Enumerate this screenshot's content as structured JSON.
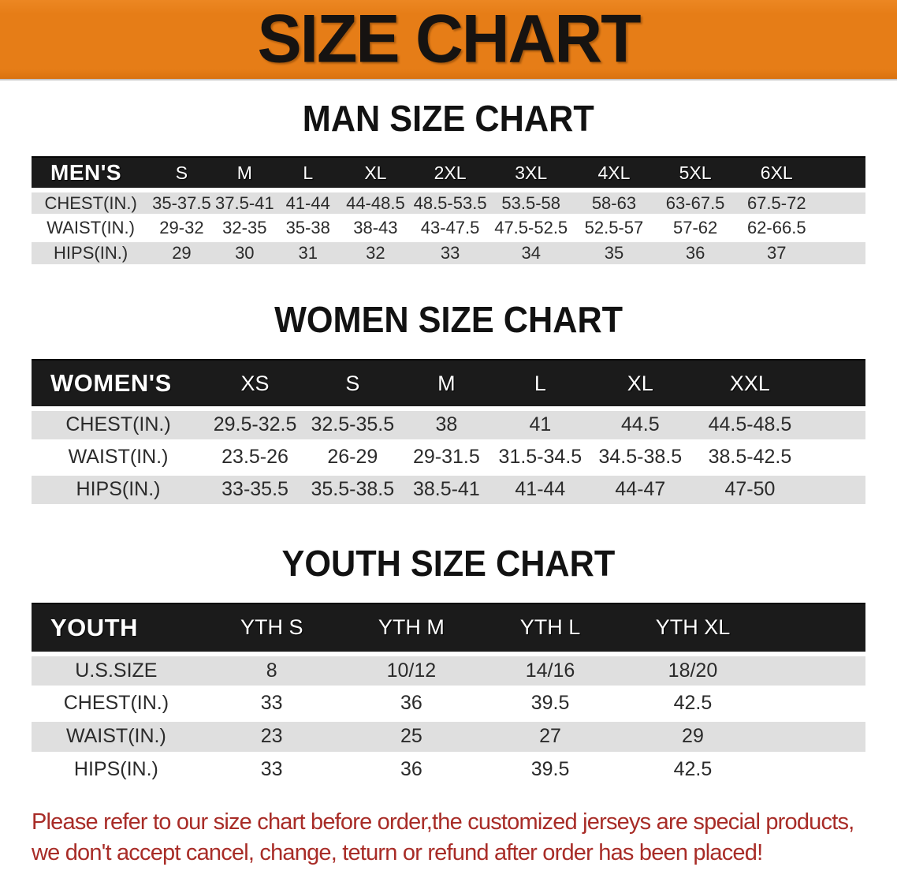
{
  "banner": {
    "title": "SIZE CHART"
  },
  "sections": [
    {
      "heading": "MAN SIZE CHART",
      "table": {
        "label": "MEN'S",
        "columns": [
          "S",
          "M",
          "L",
          "XL",
          "2XL",
          "3XL",
          "4XL",
          "5XL",
          "6XL"
        ],
        "rows": [
          {
            "label": "CHEST(IN.)",
            "values": [
              "35-37.5",
              "37.5-41",
              "41-44",
              "44-48.5",
              "48.5-53.5",
              "53.5-58",
              "58-63",
              "63-67.5",
              "67.5-72"
            ]
          },
          {
            "label": "WAIST(IN.)",
            "values": [
              "29-32",
              "32-35",
              "35-38",
              "38-43",
              "43-47.5",
              "47.5-52.5",
              "52.5-57",
              "57-62",
              "62-66.5"
            ]
          },
          {
            "label": "HIPS(IN.)",
            "values": [
              "29",
              "30",
              "31",
              "32",
              "33",
              "34",
              "35",
              "36",
              "37"
            ]
          }
        ]
      }
    },
    {
      "heading": "WOMEN SIZE CHART",
      "table": {
        "label": "WOMEN'S",
        "columns": [
          "XS",
          "S",
          "M",
          "L",
          "XL",
          "XXL"
        ],
        "rows": [
          {
            "label": "CHEST(IN.)",
            "values": [
              "29.5-32.5",
              "32.5-35.5",
              "38",
              "41",
              "44.5",
              "44.5-48.5"
            ]
          },
          {
            "label": "WAIST(IN.)",
            "values": [
              "23.5-26",
              "26-29",
              "29-31.5",
              "31.5-34.5",
              "34.5-38.5",
              "38.5-42.5"
            ]
          },
          {
            "label": "HIPS(IN.)",
            "values": [
              "33-35.5",
              "35.5-38.5",
              "38.5-41",
              "41-44",
              "44-47",
              "47-50"
            ]
          }
        ]
      }
    },
    {
      "heading": "YOUTH SIZE CHART",
      "table": {
        "label": "YOUTH",
        "columns": [
          "YTH S",
          "YTH M",
          "YTH L",
          "YTH XL"
        ],
        "rows": [
          {
            "label": "U.S.SIZE",
            "values": [
              "8",
              "10/12",
              "14/16",
              "18/20"
            ]
          },
          {
            "label": "CHEST(IN.)",
            "values": [
              "33",
              "36",
              "39.5",
              "42.5"
            ]
          },
          {
            "label": "WAIST(IN.)",
            "values": [
              "23",
              "25",
              "27",
              "29"
            ]
          },
          {
            "label": "HIPS(IN.)",
            "values": [
              "33",
              "36",
              "39.5",
              "42.5"
            ]
          }
        ]
      }
    }
  ],
  "footer": {
    "line1": "Please refer to our size chart before order,the customized jerseys are special products,",
    "line2": "we don't accept cancel, change, teturn or refund after order has been placed!"
  },
  "colors": {
    "banner_orange": "#e67d17",
    "header_black": "#1b1b1b",
    "row_gray": "#dfdfdf",
    "disclaimer_red": "#a82c27"
  }
}
